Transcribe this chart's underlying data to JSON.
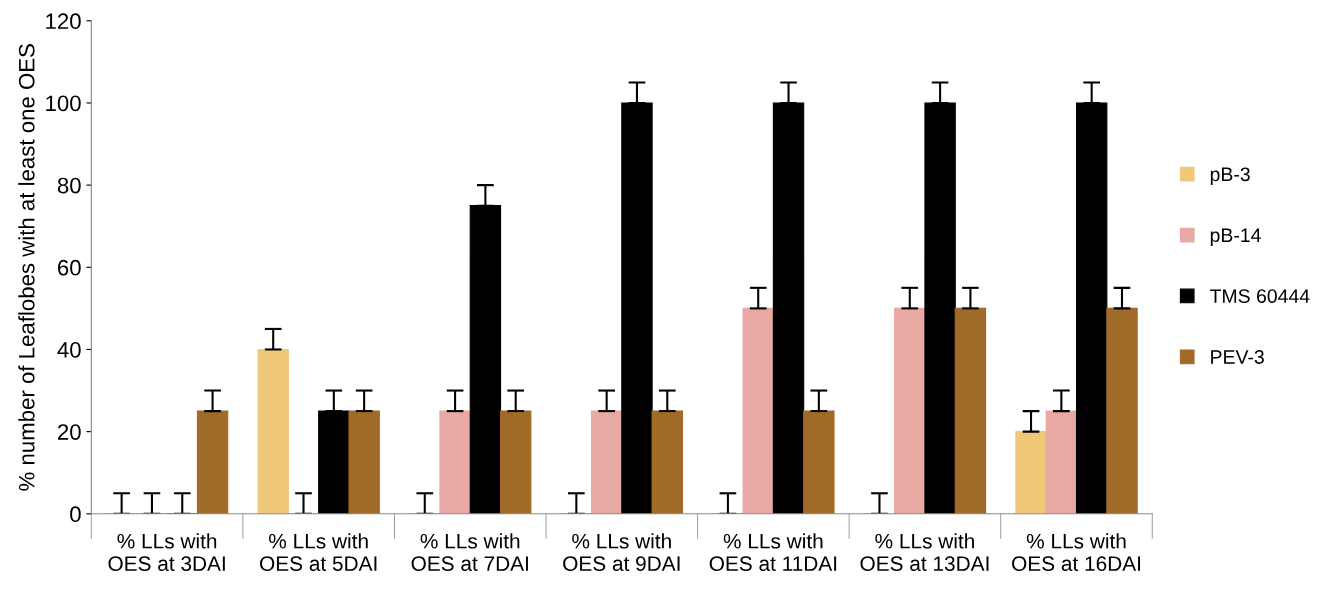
{
  "chart_data": {
    "type": "bar",
    "ylabel": "% number of Leaflobes with at least one OES",
    "categories": [
      "% LLs with\nOES at 3DAI",
      "% LLs with\nOES at 5DAI",
      "% LLs with\nOES at 7DAI",
      "% LLs with\nOES at 9DAI",
      "% LLs with\nOES at 11DAI",
      "% LLs with\nOES at 13DAI",
      "% LLs with\nOES at 16DAI"
    ],
    "series": [
      {
        "name": "pB-3",
        "color": "#f0c878",
        "values": [
          0,
          40,
          0,
          0,
          0,
          0,
          20
        ],
        "errors": [
          [
            0,
            5
          ],
          [
            40,
            45
          ],
          [
            0,
            5
          ],
          [
            0,
            5
          ],
          [
            0,
            5
          ],
          [
            0,
            5
          ],
          [
            20,
            25
          ]
        ]
      },
      {
        "name": "pB-14",
        "color": "#e8a8a4",
        "values": [
          0,
          0,
          25,
          25,
          50,
          50,
          25
        ],
        "errors": [
          [
            0,
            5
          ],
          [
            0,
            5
          ],
          [
            25,
            30
          ],
          [
            25,
            30
          ],
          [
            50,
            55
          ],
          [
            50,
            55
          ],
          [
            25,
            30
          ]
        ]
      },
      {
        "name": "TMS 60444",
        "color": "#000000",
        "values": [
          0,
          25,
          75,
          100,
          100,
          100,
          100
        ],
        "errors": [
          [
            0,
            5
          ],
          [
            25,
            30
          ],
          [
            75,
            80
          ],
          [
            100,
            105
          ],
          [
            100,
            105
          ],
          [
            100,
            105
          ],
          [
            100,
            105
          ]
        ]
      },
      {
        "name": "PEV-3",
        "color": "#a06a28",
        "values": [
          25,
          25,
          25,
          25,
          25,
          50,
          50
        ],
        "errors": [
          [
            25,
            30
          ],
          [
            25,
            30
          ],
          [
            25,
            30
          ],
          [
            25,
            30
          ],
          [
            25,
            30
          ],
          [
            50,
            55
          ],
          [
            50,
            55
          ]
        ]
      }
    ],
    "ylim": [
      0,
      120
    ],
    "yticks": [
      0,
      20,
      40,
      60,
      80,
      100,
      120
    ],
    "grid": false,
    "legend": "right"
  }
}
